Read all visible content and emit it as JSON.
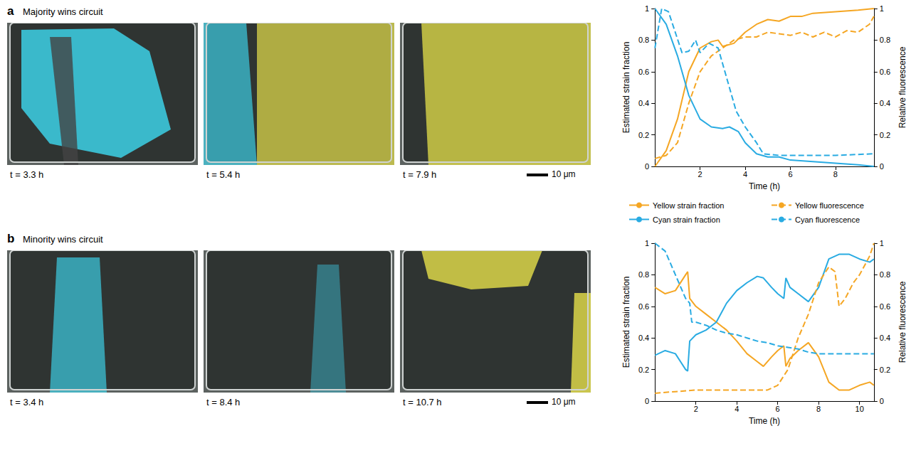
{
  "image_panels": [
    {
      "letter": "a",
      "title": "Majority wins circuit",
      "time_labels": [
        "t = 3.3 h",
        "t = 5.4 h",
        "t = 7.9 h"
      ],
      "scale_bar": "10 μm"
    },
    {
      "letter": "b",
      "title": "Minority wins circuit",
      "time_labels": [
        "t = 3.4 h",
        "t = 8.4 h",
        "t = 10.7 h"
      ],
      "scale_bar": "10 μm"
    }
  ],
  "chart_data": [
    {
      "type": "line",
      "x_label": "Time (h)",
      "y_label": "Estimated strain fraction",
      "y2_label": "Relative fluorescence",
      "xlim": [
        0,
        9.7
      ],
      "xticks": [
        2,
        4,
        6,
        8
      ],
      "ylim": [
        0,
        1
      ],
      "yticks": [
        0,
        0.2,
        0.4,
        0.6,
        0.8,
        1
      ],
      "y2lim": [
        0,
        1
      ],
      "y2ticks": [
        0,
        0.2,
        0.4,
        0.6,
        0.8,
        1
      ],
      "legend": "bottom",
      "series": [
        {
          "name": "Yellow strain fraction",
          "color": "#f5a623",
          "line_style": "solid",
          "x": [
            0,
            0.5,
            1,
            1.5,
            2,
            2.5,
            2.8,
            3,
            3.5,
            4,
            4.5,
            5,
            5.5,
            6,
            6.5,
            7,
            8,
            9,
            9.7
          ],
          "values": [
            0,
            0.1,
            0.3,
            0.6,
            0.75,
            0.79,
            0.8,
            0.76,
            0.78,
            0.85,
            0.9,
            0.93,
            0.92,
            0.95,
            0.95,
            0.97,
            0.98,
            0.99,
            1
          ]
        },
        {
          "name": "Cyan strain fraction",
          "color": "#29abe2",
          "line_style": "solid",
          "x": [
            0,
            0.5,
            1,
            1.5,
            2,
            2.5,
            3,
            3.3,
            3.7,
            4,
            4.5,
            5,
            5.5,
            6,
            7,
            8,
            9,
            9.7
          ],
          "values": [
            1,
            0.9,
            0.7,
            0.45,
            0.3,
            0.25,
            0.24,
            0.25,
            0.22,
            0.15,
            0.08,
            0.06,
            0.06,
            0.04,
            0.03,
            0.02,
            0.01,
            0
          ]
        },
        {
          "name": "Yellow fluorescence",
          "color": "#f5a623",
          "line_style": "dashed",
          "axis": "y2",
          "x": [
            0,
            0.5,
            1,
            1.5,
            2,
            2.5,
            3,
            3.5,
            4,
            4.5,
            5,
            5.5,
            6,
            6.5,
            7,
            7.5,
            8,
            8.5,
            9,
            9.5,
            9.7
          ],
          "values": [
            0.05,
            0.07,
            0.15,
            0.4,
            0.6,
            0.7,
            0.75,
            0.8,
            0.82,
            0.82,
            0.85,
            0.84,
            0.83,
            0.85,
            0.82,
            0.85,
            0.82,
            0.86,
            0.85,
            0.9,
            0.95
          ]
        },
        {
          "name": "Cyan fluorescence",
          "color": "#29abe2",
          "line_style": "dashed",
          "axis": "y2",
          "x": [
            0,
            0.3,
            0.6,
            0.9,
            1.2,
            1.5,
            1.8,
            2,
            2.4,
            2.8,
            3.2,
            3.6,
            4,
            4.5,
            4.8,
            5.5,
            6,
            8,
            9.7
          ],
          "values": [
            0.75,
            1,
            0.98,
            0.85,
            0.72,
            0.73,
            0.8,
            0.72,
            0.78,
            0.75,
            0.55,
            0.35,
            0.25,
            0.15,
            0.08,
            0.07,
            0.07,
            0.07,
            0.08
          ]
        }
      ]
    },
    {
      "type": "line",
      "x_label": "Time (h)",
      "y_label": "Estimated strain fraction",
      "y2_label": "Relative fluorescence",
      "xlim": [
        0,
        10.7
      ],
      "xticks": [
        2,
        4,
        6,
        8,
        10
      ],
      "ylim": [
        0,
        1
      ],
      "yticks": [
        0,
        0.2,
        0.4,
        0.6,
        0.8,
        1
      ],
      "y2lim": [
        0,
        1
      ],
      "y2ticks": [
        0,
        0.2,
        0.4,
        0.6,
        0.8,
        1
      ],
      "series": [
        {
          "name": "Yellow strain fraction",
          "color": "#f5a623",
          "line_style": "solid",
          "x": [
            0,
            0.5,
            1,
            1.5,
            1.6,
            1.7,
            2,
            2.5,
            3,
            3.5,
            4,
            4.5,
            5,
            5.3,
            5.7,
            6,
            6.3,
            6.4,
            6.6,
            7,
            7.5,
            8,
            8.5,
            9,
            9.5,
            10,
            10.5,
            10.7
          ],
          "values": [
            0.72,
            0.68,
            0.7,
            0.8,
            0.82,
            0.65,
            0.6,
            0.55,
            0.5,
            0.45,
            0.38,
            0.3,
            0.25,
            0.22,
            0.28,
            0.32,
            0.35,
            0.22,
            0.27,
            0.32,
            0.37,
            0.28,
            0.12,
            0.07,
            0.07,
            0.1,
            0.12,
            0.1
          ]
        },
        {
          "name": "Cyan strain fraction",
          "color": "#29abe2",
          "line_style": "solid",
          "x": [
            0,
            0.5,
            1,
            1.5,
            1.6,
            1.7,
            2,
            2.5,
            3,
            3.5,
            4,
            4.5,
            5,
            5.3,
            5.7,
            6,
            6.3,
            6.4,
            6.6,
            7,
            7.5,
            8,
            8.5,
            9,
            9.5,
            10,
            10.5,
            10.7
          ],
          "values": [
            0.29,
            0.32,
            0.3,
            0.2,
            0.19,
            0.38,
            0.42,
            0.45,
            0.5,
            0.62,
            0.7,
            0.75,
            0.79,
            0.78,
            0.72,
            0.68,
            0.65,
            0.78,
            0.72,
            0.68,
            0.63,
            0.72,
            0.9,
            0.93,
            0.93,
            0.9,
            0.88,
            0.9
          ]
        },
        {
          "name": "Yellow fluorescence",
          "color": "#f5a623",
          "line_style": "dashed",
          "axis": "y2",
          "x": [
            0,
            1,
            2,
            3,
            4,
            5,
            5.5,
            6,
            6.5,
            7,
            7.5,
            8,
            8.5,
            8.8,
            9,
            9.3,
            9.7,
            10,
            10.5,
            10.7
          ],
          "values": [
            0.05,
            0.06,
            0.07,
            0.07,
            0.07,
            0.07,
            0.07,
            0.1,
            0.2,
            0.4,
            0.55,
            0.75,
            0.85,
            0.82,
            0.6,
            0.65,
            0.75,
            0.8,
            0.92,
            1
          ]
        },
        {
          "name": "Cyan fluorescence",
          "color": "#29abe2",
          "line_style": "dashed",
          "axis": "y2",
          "x": [
            0,
            0.5,
            1,
            1.5,
            1.7,
            1.8,
            2,
            2.5,
            3,
            3.5,
            4,
            4.5,
            5,
            5.5,
            6,
            6.5,
            7,
            7.5,
            8,
            9,
            10,
            10.7
          ],
          "values": [
            1,
            0.95,
            0.8,
            0.65,
            0.62,
            0.5,
            0.5,
            0.48,
            0.45,
            0.43,
            0.42,
            0.4,
            0.38,
            0.37,
            0.35,
            0.34,
            0.33,
            0.31,
            0.3,
            0.3,
            0.3,
            0.3
          ]
        }
      ]
    }
  ]
}
